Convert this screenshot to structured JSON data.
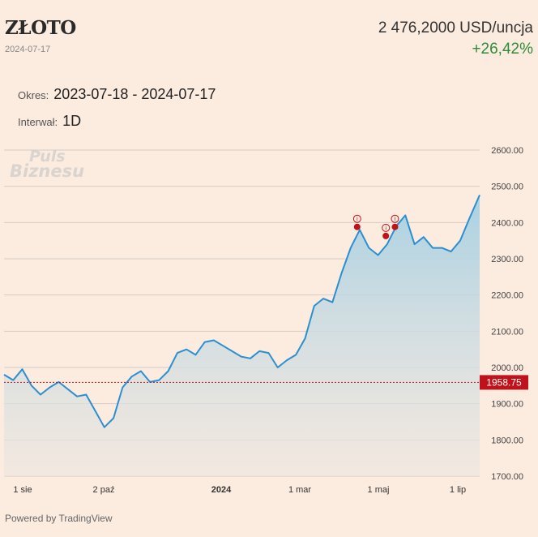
{
  "header": {
    "title": "ZŁOTO",
    "date": "2024-07-17",
    "price": "2 476,2000 USD/uncja",
    "change": "+26,42%"
  },
  "meta": {
    "period_label": "Okres:",
    "period_value": "2023-07-18 - 2024-07-17",
    "interval_label": "Interwał:",
    "interval_value": "1D"
  },
  "watermark": {
    "line1": "Puls",
    "line2": "Biznesu"
  },
  "footer": {
    "powered": "Powered by TradingView"
  },
  "colors": {
    "line": "#2b8fd0",
    "area_top": "#a9d1e3",
    "area_bottom": "#ece6e0",
    "reference": "#c0121a",
    "marker": "#c0121a",
    "change": "#2e8b3a"
  },
  "chart_data": {
    "type": "area",
    "ylim": [
      1700,
      2600
    ],
    "y_ticks": [
      "2600.00",
      "2500.00",
      "2400.00",
      "2300.00",
      "2200.00",
      "2100.00",
      "2000.00",
      "1900.00",
      "1800.00",
      "1700.00"
    ],
    "x_ticks": [
      "1 sie",
      "2 paź",
      "2024",
      "1 mar",
      "1 maj",
      "1 lip"
    ],
    "reference_value": 1958.75,
    "reference_label": "1958.75",
    "grid": true,
    "x": [
      "2023-07-18",
      "2023-07-25",
      "2023-08-01",
      "2023-08-08",
      "2023-08-15",
      "2023-08-22",
      "2023-08-29",
      "2023-09-05",
      "2023-09-12",
      "2023-09-19",
      "2023-09-26",
      "2023-10-03",
      "2023-10-10",
      "2023-10-17",
      "2023-10-24",
      "2023-10-31",
      "2023-11-07",
      "2023-11-14",
      "2023-11-21",
      "2023-11-28",
      "2023-12-05",
      "2023-12-12",
      "2023-12-19",
      "2023-12-26",
      "2024-01-02",
      "2024-01-09",
      "2024-01-16",
      "2024-01-23",
      "2024-01-30",
      "2024-02-06",
      "2024-02-13",
      "2024-02-20",
      "2024-02-27",
      "2024-03-05",
      "2024-03-12",
      "2024-03-19",
      "2024-03-26",
      "2024-04-02",
      "2024-04-09",
      "2024-04-16",
      "2024-04-23",
      "2024-04-30",
      "2024-05-07",
      "2024-05-14",
      "2024-05-21",
      "2024-05-28",
      "2024-06-04",
      "2024-06-11",
      "2024-06-18",
      "2024-06-25",
      "2024-07-02",
      "2024-07-09",
      "2024-07-17"
    ],
    "series": [
      {
        "values": [
          1980,
          1965,
          1995,
          1950,
          1925,
          1945,
          1960,
          1940,
          1920,
          1925,
          1880,
          1835,
          1860,
          1945,
          1975,
          1990,
          1960,
          1965,
          1990,
          2040,
          2050,
          2035,
          2070,
          2075,
          2060,
          2045,
          2030,
          2025,
          2045,
          2040,
          2000,
          2020,
          2035,
          2080,
          2170,
          2190,
          2180,
          2260,
          2330,
          2380,
          2330,
          2310,
          2340,
          2390,
          2420,
          2340,
          2360,
          2330,
          2330,
          2320,
          2350,
          2410,
          2476
        ]
      }
    ],
    "markers": [
      {
        "x": "2024-04-14",
        "y": 2388
      },
      {
        "x": "2024-05-06",
        "y": 2363
      },
      {
        "x": "2024-05-13",
        "y": 2388
      }
    ]
  }
}
